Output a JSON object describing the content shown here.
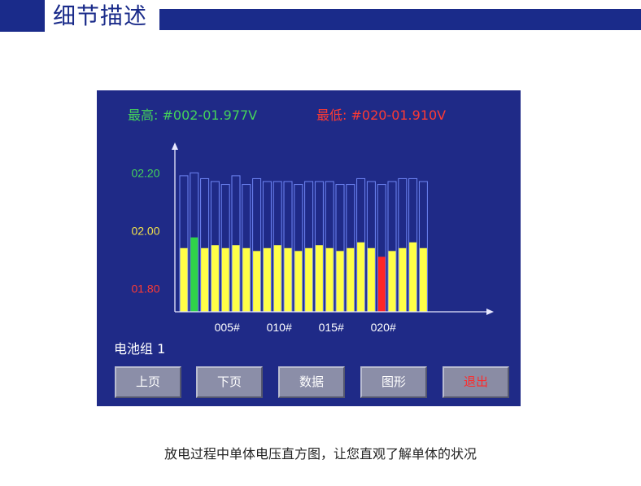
{
  "header": {
    "title": "细节描述"
  },
  "screen": {
    "max_label": "最高: #002-01.977V",
    "min_label": "最低: #020-01.910V",
    "group_label": "电池组 1",
    "buttons": {
      "prev_page": "上页",
      "next_page": "下页",
      "data": "数据",
      "graph": "图形",
      "exit": "退出"
    }
  },
  "chart_data": {
    "type": "bar",
    "y_tick_labels": [
      {
        "label": "02.20",
        "value": 2.2,
        "color": "#44d35a"
      },
      {
        "label": "02.00",
        "value": 2.0,
        "color": "#f2e14a"
      },
      {
        "label": "01.80",
        "value": 1.8,
        "color": "#ff3a33"
      }
    ],
    "x_tick_labels": [
      {
        "label": "005#",
        "index": 5
      },
      {
        "label": "010#",
        "index": 10
      },
      {
        "label": "015#",
        "index": 15
      },
      {
        "label": "020#",
        "index": 20
      }
    ],
    "ylim": [
      1.72,
      2.26
    ],
    "values": [
      1.94,
      1.977,
      1.94,
      1.95,
      1.94,
      1.95,
      1.94,
      1.93,
      1.94,
      1.95,
      1.94,
      1.93,
      1.94,
      1.95,
      1.94,
      1.93,
      1.94,
      1.96,
      1.94,
      1.91,
      1.93,
      1.94,
      1.96,
      1.94
    ],
    "outline_tops": [
      2.19,
      2.2,
      2.18,
      2.17,
      2.16,
      2.19,
      2.16,
      2.18,
      2.17,
      2.17,
      2.17,
      2.16,
      2.17,
      2.17,
      2.17,
      2.16,
      2.16,
      2.18,
      2.17,
      2.16,
      2.17,
      2.18,
      2.18,
      2.17
    ],
    "highlight": {
      "max_index": 2,
      "min_index": 20
    },
    "colors": {
      "bar": "#ffff47",
      "max": "#2fd34a",
      "min": "#ff2626",
      "outline": "#6f86f4",
      "axis": "#e8e8ff"
    }
  },
  "caption": "放电过程中单体电压直方图，让您直观了解单体的状况"
}
